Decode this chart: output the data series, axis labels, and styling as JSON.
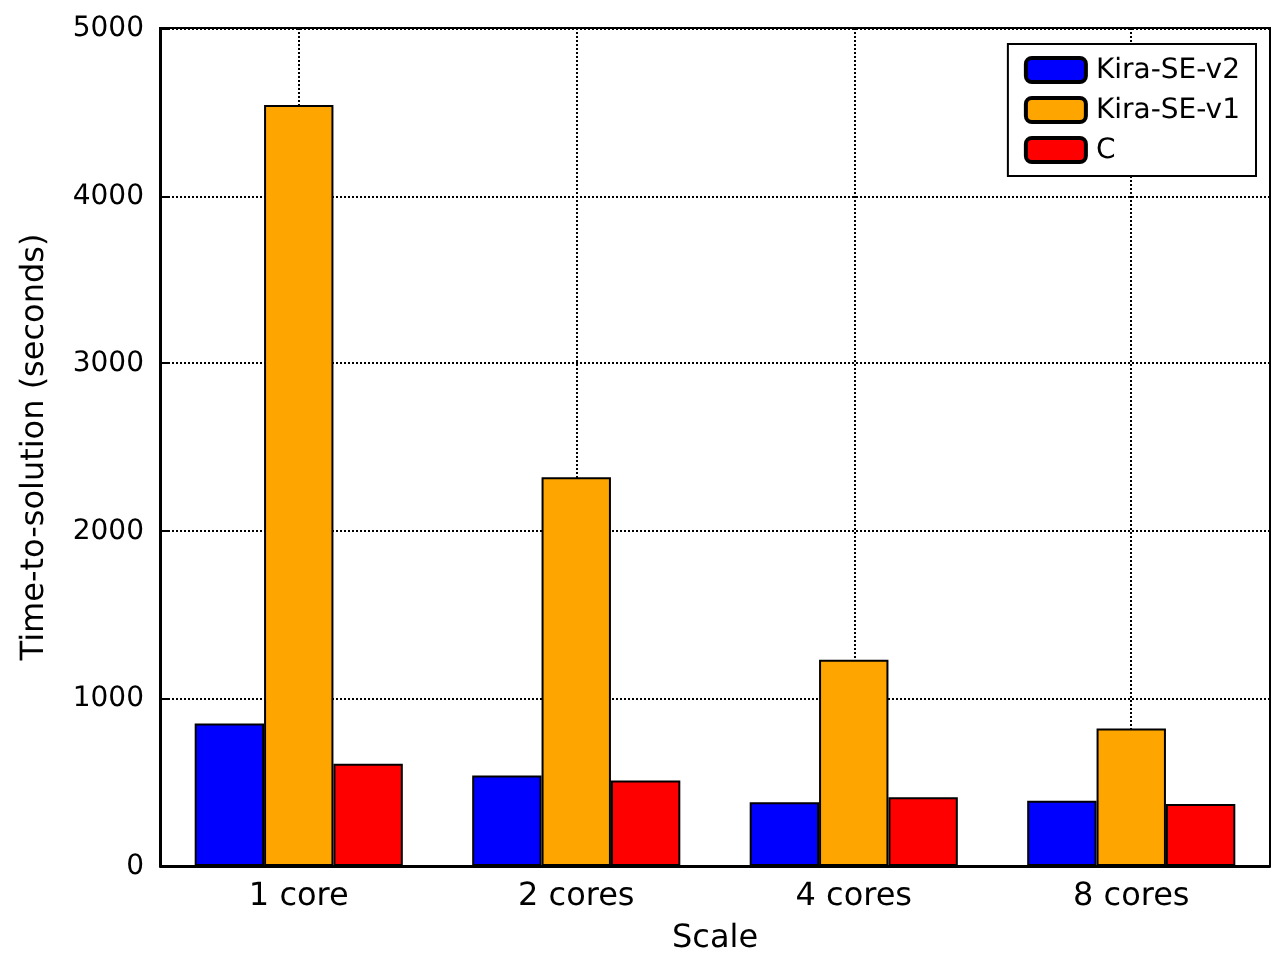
{
  "chart_data": {
    "type": "bar",
    "xlabel": "Scale",
    "ylabel": "Time-to-solution (seconds)",
    "categories": [
      "1 core",
      "2 cores",
      "4 cores",
      "8 cores"
    ],
    "series": [
      {
        "name": "Kira-SE-v2",
        "color": "#0000ff",
        "values": [
          850,
          540,
          380,
          390
        ]
      },
      {
        "name": "Kira-SE-v1",
        "color": "#ffa500",
        "values": [
          4540,
          2320,
          1230,
          820
        ]
      },
      {
        "name": "C",
        "color": "#ff0000",
        "values": [
          610,
          510,
          410,
          370
        ]
      }
    ],
    "ylim": [
      0,
      5000
    ],
    "yticks": [
      0,
      1000,
      2000,
      3000,
      4000,
      5000
    ],
    "grid": true,
    "legend": "top right"
  }
}
